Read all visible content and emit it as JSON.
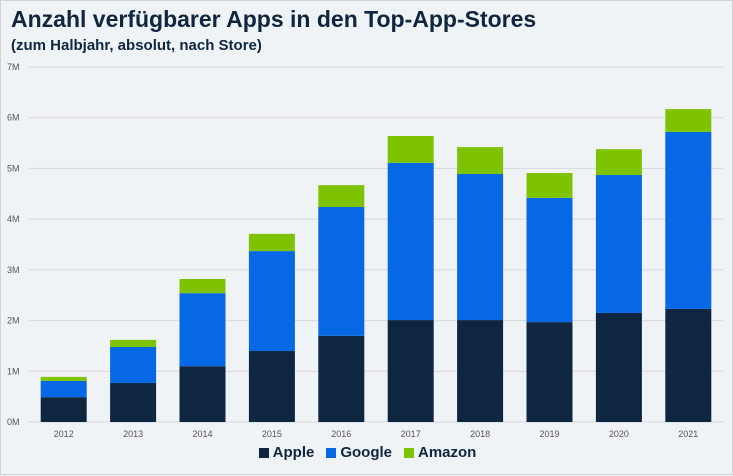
{
  "chart_data": {
    "type": "bar",
    "stacked": true,
    "title": "Anzahl verfügbarer Apps in den Top-App-Stores",
    "subtitle": "(zum Halbjahr, absolut, nach Store)",
    "categories": [
      "2012",
      "2013",
      "2014",
      "2015",
      "2016",
      "2017",
      "2018",
      "2019",
      "2020",
      "2021"
    ],
    "series": [
      {
        "name": "Apple",
        "color": "#0f2640",
        "values": [
          0.49,
          0.77,
          1.1,
          1.4,
          1.7,
          2.01,
          2.01,
          1.97,
          2.15,
          2.23
        ]
      },
      {
        "name": "Google",
        "color": "#0668e4",
        "values": [
          0.32,
          0.71,
          1.44,
          1.97,
          2.54,
          3.1,
          2.88,
          2.45,
          2.72,
          3.49
        ]
      },
      {
        "name": "Amazon",
        "color": "#7ec302",
        "values": [
          0.08,
          0.14,
          0.28,
          0.34,
          0.43,
          0.53,
          0.53,
          0.49,
          0.51,
          0.45
        ]
      }
    ],
    "unit": "millions",
    "ylim": [
      0,
      7
    ],
    "yticks": [
      "0M",
      "1M",
      "2M",
      "3M",
      "4M",
      "5M",
      "6M",
      "7M"
    ],
    "grid": true,
    "legend": "bottom"
  }
}
